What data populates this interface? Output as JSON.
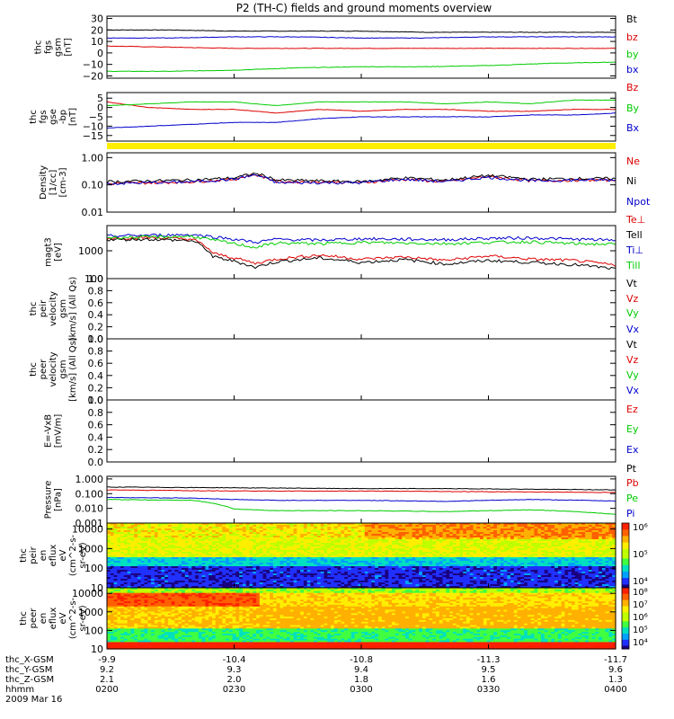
{
  "title": "P2 (TH-C) fields and ground moments overview",
  "colors": {
    "black": "#000000",
    "red": "#dd0000",
    "green": "#00cc00",
    "blue": "#0000cc",
    "yellow": "#ffee00"
  },
  "chart_data": [
    {
      "id": "fgs-gsm",
      "type": "line",
      "ylabel": [
        "thc",
        "fgs",
        "gsm",
        "[nT]"
      ],
      "ylim": [
        -22,
        32
      ],
      "yticks": [
        30,
        20,
        10,
        0,
        -10,
        -20
      ],
      "ytick_labels": [
        "30",
        "20",
        "10",
        "0",
        "−10",
        "−20"
      ],
      "series": [
        {
          "name": "Bt",
          "color": "black",
          "x": [
            0,
            15,
            30,
            45,
            60,
            75,
            90,
            105,
            120
          ],
          "y": [
            20,
            20,
            19,
            19,
            19,
            18,
            18,
            18,
            18
          ]
        },
        {
          "name": "bz",
          "color": "red",
          "x": [
            0,
            15,
            30,
            45,
            60,
            75,
            90,
            105,
            120
          ],
          "y": [
            6,
            5,
            4,
            4,
            4,
            4,
            4,
            4,
            4
          ]
        },
        {
          "name": "by",
          "color": "green",
          "x": [
            0,
            15,
            30,
            45,
            60,
            75,
            90,
            105,
            120
          ],
          "y": [
            -16,
            -16,
            -15,
            -13,
            -12,
            -12,
            -11,
            -9,
            -8
          ]
        },
        {
          "name": "bx",
          "color": "blue",
          "x": [
            0,
            15,
            30,
            45,
            60,
            75,
            90,
            105,
            120
          ],
          "y": [
            13,
            13,
            14,
            14,
            13,
            13,
            14,
            14,
            14
          ]
        }
      ]
    },
    {
      "id": "fgs-gse-dsl",
      "type": "line",
      "ylabel": [
        "thc",
        "fgs",
        "gse",
        "-bp",
        "[nT]"
      ],
      "ylim": [
        -18,
        8
      ],
      "yticks": [
        5,
        0,
        -5,
        -10,
        -15
      ],
      "ytick_labels": [
        "5",
        "0",
        "−5",
        "−10",
        "−15"
      ],
      "series": [
        {
          "name": "Bz",
          "color": "red",
          "x": [
            0,
            10,
            20,
            30,
            40,
            50,
            60,
            70,
            80,
            90,
            100,
            110,
            120
          ],
          "y": [
            3,
            0,
            -1,
            -1,
            -3,
            -1,
            -2,
            -1,
            -1,
            -2,
            -2,
            -1,
            -1
          ]
        },
        {
          "name": "By",
          "color": "green",
          "x": [
            0,
            10,
            20,
            30,
            40,
            50,
            60,
            70,
            80,
            90,
            100,
            110,
            120
          ],
          "y": [
            1,
            2,
            3,
            3,
            1,
            3,
            3,
            3,
            2,
            3,
            2,
            4,
            4
          ]
        },
        {
          "name": "Bx",
          "color": "blue",
          "x": [
            0,
            10,
            20,
            30,
            40,
            50,
            60,
            70,
            80,
            90,
            100,
            110,
            120
          ],
          "y": [
            -11,
            -10,
            -9,
            -8,
            -8,
            -6,
            -5,
            -5,
            -5,
            -5,
            -4,
            -4,
            -3
          ]
        }
      ]
    },
    {
      "id": "density",
      "type": "line",
      "log": true,
      "ylabel": [
        "Density",
        "[1/cc]",
        "[cm-3]"
      ],
      "ylim": [
        0.01,
        1.5
      ],
      "yticks": [
        1.0,
        0.1,
        0.01
      ],
      "ytick_labels": [
        "1.00",
        "0.10",
        "0.01"
      ],
      "series": [
        {
          "name": "Ne",
          "color": "red",
          "x": [
            0,
            10,
            20,
            30,
            35,
            40,
            50,
            60,
            70,
            80,
            90,
            100,
            110,
            120
          ],
          "y": [
            0.11,
            0.12,
            0.13,
            0.16,
            0.24,
            0.13,
            0.13,
            0.12,
            0.16,
            0.13,
            0.2,
            0.14,
            0.15,
            0.15
          ]
        },
        {
          "name": "Ni",
          "color": "black",
          "x": [
            0,
            10,
            20,
            30,
            35,
            40,
            50,
            60,
            70,
            80,
            90,
            100,
            110,
            120
          ],
          "y": [
            0.13,
            0.14,
            0.15,
            0.18,
            0.26,
            0.15,
            0.14,
            0.13,
            0.18,
            0.15,
            0.22,
            0.16,
            0.17,
            0.17
          ]
        },
        {
          "name": "Npot",
          "color": "blue",
          "x": [
            0,
            10,
            20,
            30,
            35,
            40,
            50,
            60,
            70,
            80,
            90,
            100,
            110,
            120
          ],
          "y": [
            0.11,
            0.12,
            0.13,
            0.16,
            0.23,
            0.12,
            0.12,
            0.12,
            0.16,
            0.13,
            0.19,
            0.14,
            0.15,
            0.15
          ]
        }
      ]
    },
    {
      "id": "temperature",
      "type": "line",
      "log": true,
      "ylabel": [
        "magt3",
        "[eV]"
      ],
      "ylim": [
        100,
        8000
      ],
      "yticks": [
        1000,
        100
      ],
      "ytick_labels": [
        "1000",
        "100"
      ],
      "series": [
        {
          "name": "Te⊥",
          "color": "red",
          "x": [
            0,
            10,
            20,
            25,
            30,
            35,
            40,
            50,
            60,
            70,
            80,
            90,
            100,
            110,
            120
          ],
          "y": [
            2800,
            3000,
            2600,
            800,
            550,
            350,
            500,
            700,
            500,
            600,
            450,
            650,
            500,
            450,
            300
          ]
        },
        {
          "name": "Tell",
          "color": "black",
          "x": [
            0,
            10,
            20,
            25,
            30,
            35,
            40,
            50,
            60,
            70,
            80,
            90,
            100,
            110,
            120
          ],
          "y": [
            2500,
            2600,
            2300,
            600,
            420,
            250,
            400,
            550,
            380,
            480,
            330,
            450,
            380,
            320,
            220
          ]
        },
        {
          "name": "Ti⊥",
          "color": "blue",
          "x": [
            0,
            10,
            20,
            25,
            30,
            35,
            40,
            50,
            60,
            70,
            80,
            90,
            100,
            110,
            120
          ],
          "y": [
            3400,
            3600,
            3800,
            3200,
            2600,
            2000,
            2600,
            2400,
            2700,
            2600,
            2500,
            2800,
            2900,
            2600,
            2400
          ]
        },
        {
          "name": "Till",
          "color": "green",
          "x": [
            0,
            10,
            20,
            25,
            30,
            35,
            40,
            50,
            60,
            70,
            80,
            90,
            100,
            110,
            120
          ],
          "y": [
            3000,
            3100,
            3300,
            2400,
            1800,
            1300,
            1900,
            1800,
            2000,
            1900,
            1800,
            2000,
            2100,
            1800,
            1700
          ]
        }
      ]
    },
    {
      "id": "peir-velocity",
      "type": "line",
      "ylabel": [
        "thc",
        "peir",
        "velocity",
        "gsm",
        "[km/s] (All Qs)"
      ],
      "ylim": [
        0,
        1
      ],
      "yticks": [
        1.0,
        0.8,
        0.6,
        0.4,
        0.2,
        0.0
      ],
      "ytick_labels": [
        "1.0",
        "0.8",
        "0.6",
        "0.4",
        "0.2",
        "0.0"
      ],
      "series": [
        {
          "name": "Vt",
          "color": "black",
          "x": [],
          "y": []
        },
        {
          "name": "Vz",
          "color": "red",
          "x": [],
          "y": []
        },
        {
          "name": "Vy",
          "color": "green",
          "x": [],
          "y": []
        },
        {
          "name": "Vx",
          "color": "blue",
          "x": [],
          "y": []
        }
      ]
    },
    {
      "id": "peer-velocity",
      "type": "line",
      "ylabel": [
        "thc",
        "peer",
        "velocity",
        "gsm",
        "[km/s] (All Qs)"
      ],
      "ylim": [
        0,
        1
      ],
      "yticks": [
        1.0,
        0.8,
        0.6,
        0.4,
        0.2,
        0.0
      ],
      "ytick_labels": [
        "1.0",
        "0.8",
        "0.6",
        "0.4",
        "0.2",
        "0.0"
      ],
      "series": [
        {
          "name": "Vt",
          "color": "black",
          "x": [],
          "y": []
        },
        {
          "name": "Vz",
          "color": "red",
          "x": [],
          "y": []
        },
        {
          "name": "Vy",
          "color": "green",
          "x": [],
          "y": []
        },
        {
          "name": "Vx",
          "color": "blue",
          "x": [],
          "y": []
        }
      ]
    },
    {
      "id": "e-field",
      "type": "line",
      "ylabel": [
        "E=-VxB",
        "[mV/m]"
      ],
      "ylim": [
        0,
        1
      ],
      "yticks": [
        1.0,
        0.8,
        0.6,
        0.4,
        0.2,
        0.0
      ],
      "ytick_labels": [
        "1.0",
        "0.8",
        "0.6",
        "0.4",
        "0.2",
        "0.0"
      ],
      "series": [
        {
          "name": "Ez",
          "color": "red",
          "x": [],
          "y": []
        },
        {
          "name": "Ey",
          "color": "green",
          "x": [],
          "y": []
        },
        {
          "name": "Ex",
          "color": "blue",
          "x": [],
          "y": []
        }
      ]
    },
    {
      "id": "pressure",
      "type": "line",
      "log": true,
      "ylabel": [
        "Pressure",
        "[nPa]"
      ],
      "ylim": [
        0.001,
        1.5
      ],
      "yticks": [
        1.0,
        0.1,
        0.01,
        0.001
      ],
      "ytick_labels": [
        "1.000",
        "0.100",
        "0.010",
        "0.001"
      ],
      "series": [
        {
          "name": "Pt",
          "color": "black",
          "x": [
            0,
            20,
            40,
            60,
            80,
            100,
            120
          ],
          "y": [
            0.28,
            0.26,
            0.24,
            0.22,
            0.22,
            0.2,
            0.18
          ]
        },
        {
          "name": "Pb",
          "color": "red",
          "x": [
            0,
            20,
            40,
            60,
            80,
            100,
            120
          ],
          "y": [
            0.18,
            0.16,
            0.15,
            0.15,
            0.14,
            0.13,
            0.12
          ]
        },
        {
          "name": "Pe",
          "color": "green",
          "x": [
            0,
            20,
            30,
            40,
            60,
            80,
            100,
            120
          ],
          "y": [
            0.04,
            0.035,
            0.009,
            0.007,
            0.007,
            0.006,
            0.008,
            0.004
          ]
        },
        {
          "name": "Pi",
          "color": "blue",
          "x": [
            0,
            20,
            30,
            40,
            60,
            80,
            100,
            120
          ],
          "y": [
            0.055,
            0.05,
            0.04,
            0.035,
            0.035,
            0.03,
            0.04,
            0.032
          ]
        }
      ]
    },
    {
      "id": "peir-en-eflux",
      "type": "heatmap",
      "ylabel": [
        "thc",
        "peir",
        "en",
        "eflux",
        "eV",
        "(cm^2-s-",
        "sr-eV)"
      ],
      "ylim": [
        10,
        20000
      ],
      "yticks": [
        10000,
        1000,
        100,
        10
      ],
      "ytick_labels": [
        "10000",
        "1000",
        "100",
        "10"
      ],
      "colorbar": {
        "labels": [
          "10⁶",
          "10⁵",
          "10⁴"
        ]
      }
    },
    {
      "id": "peer-en-eflux",
      "type": "heatmap",
      "ylabel": [
        "thc",
        "peer",
        "en",
        "eflux",
        "eV",
        "(cm^2-s-",
        "sr-eV)"
      ],
      "ylim": [
        10,
        20000
      ],
      "yticks": [
        10000,
        1000,
        100,
        10
      ],
      "ytick_labels": [
        "10000",
        "1000",
        "100",
        "10"
      ],
      "colorbar": {
        "labels": [
          "10⁸",
          "10⁷",
          "10⁶",
          "10⁵",
          "10⁴"
        ]
      }
    }
  ],
  "x_axis": {
    "row_labels": [
      "thc_X-GSM",
      "thc_Y-GSM",
      "thc_Z-GSM",
      "hhmm"
    ],
    "date": "2009 Mar 16",
    "ticks": [
      {
        "t": 0,
        "x_gsm": "-9.9",
        "y_gsm": "9.2",
        "z_gsm": "2.1",
        "hhmm": "0200"
      },
      {
        "t": 30,
        "x_gsm": "-10.4",
        "y_gsm": "9.3",
        "z_gsm": "2.0",
        "hhmm": "0230"
      },
      {
        "t": 60,
        "x_gsm": "-10.8",
        "y_gsm": "9.4",
        "z_gsm": "1.8",
        "hhmm": "0300"
      },
      {
        "t": 90,
        "x_gsm": "-11.3",
        "y_gsm": "9.5",
        "z_gsm": "1.6",
        "hhmm": "0330"
      },
      {
        "t": 120,
        "x_gsm": "-11.7",
        "y_gsm": "9.6",
        "z_gsm": "1.3",
        "hhmm": "0400"
      }
    ]
  }
}
